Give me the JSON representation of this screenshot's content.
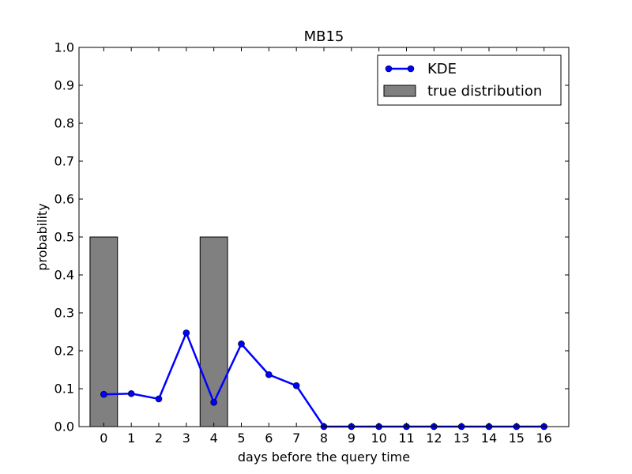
{
  "chart_data": {
    "type": "bar",
    "title": "MB15",
    "xlabel": "days before the query time",
    "ylabel": "probability",
    "x": [
      0,
      1,
      2,
      3,
      4,
      5,
      6,
      7,
      8,
      9,
      10,
      11,
      12,
      13,
      14,
      15,
      16
    ],
    "xlim": [
      -0.9,
      16.9
    ],
    "ylim": [
      0.0,
      1.0
    ],
    "yticks": [
      "0.0",
      "0.1",
      "0.2",
      "0.3",
      "0.4",
      "0.5",
      "0.6",
      "0.7",
      "0.8",
      "0.9",
      "1.0"
    ],
    "grid": false,
    "legend_position": "top-right",
    "series": [
      {
        "name": "KDE",
        "kind": "line",
        "color": "#0000ff",
        "values": [
          0.085,
          0.087,
          0.073,
          0.247,
          0.064,
          0.218,
          0.137,
          0.108,
          0.0,
          0.0,
          0.0,
          0.0,
          0.0,
          0.0,
          0.0,
          0.0,
          0.0
        ]
      },
      {
        "name": "true distribution",
        "kind": "bar",
        "color": "#808080",
        "values": [
          0.5,
          0.0,
          0.0,
          0.0,
          0.5,
          0.0,
          0.0,
          0.0,
          0.0,
          0.0,
          0.0,
          0.0,
          0.0,
          0.0,
          0.0,
          0.0,
          0.0
        ]
      }
    ]
  }
}
